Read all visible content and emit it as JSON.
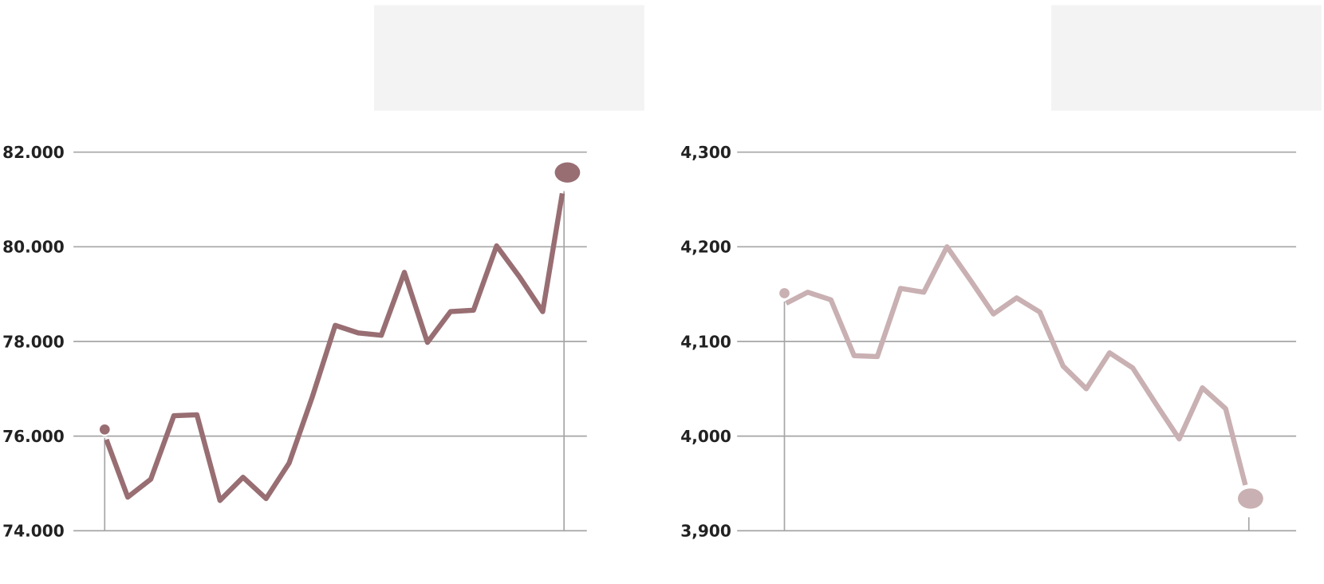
{
  "chart_data": [
    {
      "type": "line",
      "ylim": [
        74000,
        82000
      ],
      "yticks": [
        74000,
        76000,
        78000,
        80000,
        82000
      ],
      "ytick_labels": [
        "74.000",
        "76.000",
        "78.000",
        "80.000",
        "82.000"
      ],
      "grid": true,
      "color": "#986e73",
      "values": [
        76140,
        74710,
        75090,
        76430,
        76450,
        74640,
        75130,
        74680,
        75430,
        76820,
        78340,
        78180,
        78130,
        79460,
        77980,
        78630,
        78660,
        80020,
        79360,
        78630,
        81570
      ]
    },
    {
      "type": "line",
      "ylim": [
        3900,
        4300
      ],
      "yticks": [
        3900,
        4000,
        4100,
        4200,
        4300
      ],
      "ytick_labels": [
        "3,900",
        "4,000",
        "4,100",
        "4,200",
        "4,300"
      ],
      "grid": true,
      "color": "#c9b0b2",
      "values": [
        4151,
        4152,
        4144,
        4085,
        4084,
        4156,
        4152,
        4200,
        4165,
        4129,
        4146,
        4131,
        4074,
        4050,
        4088,
        4072,
        4034,
        3997,
        4051,
        4029,
        3934
      ]
    }
  ]
}
